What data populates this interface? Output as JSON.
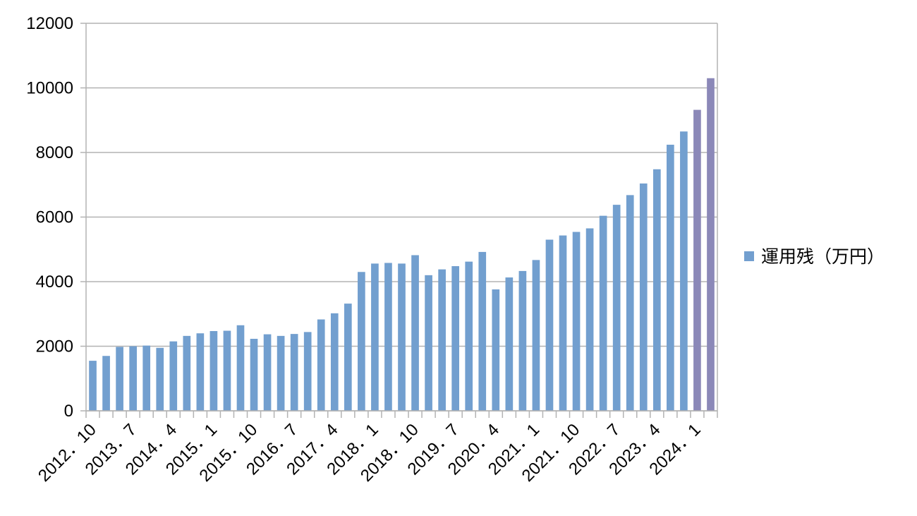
{
  "chart_data": {
    "type": "bar",
    "title": "",
    "xlabel": "",
    "ylabel": "",
    "ylim": [
      0,
      12000
    ],
    "yticks": [
      0,
      2000,
      4000,
      6000,
      8000,
      10000,
      12000
    ],
    "grid": true,
    "legend_position": "right",
    "x_tick_labels": [
      "2012．10",
      "2013．7",
      "2014．4",
      "2015．1",
      "2015．10",
      "2016．7",
      "2017．4",
      "2018．1",
      "2018．10",
      "2019．7",
      "2020．4",
      "2021．1",
      "2021．10",
      "2022．7",
      "2023．4",
      "2024．1"
    ],
    "colors": {
      "bar": "#729fcf",
      "bar_highlight": "#8b88b8",
      "grid": "#b3b3b3",
      "axis": "#b3b3b3"
    },
    "series": [
      {
        "name": "運用残（万円）",
        "values": [
          1550,
          1700,
          1980,
          2000,
          2020,
          1950,
          2150,
          2320,
          2400,
          2470,
          2480,
          2650,
          2230,
          2370,
          2320,
          2380,
          2440,
          2830,
          3020,
          3320,
          4300,
          4560,
          4580,
          4560,
          4820,
          4200,
          4380,
          4480,
          4620,
          4920,
          3760,
          4130,
          4330,
          4670,
          5300,
          5430,
          5540,
          5650,
          6040,
          6380,
          6680,
          7040,
          7480,
          8240,
          8650,
          9320,
          10300
        ],
        "highlight_last": 2
      }
    ]
  }
}
